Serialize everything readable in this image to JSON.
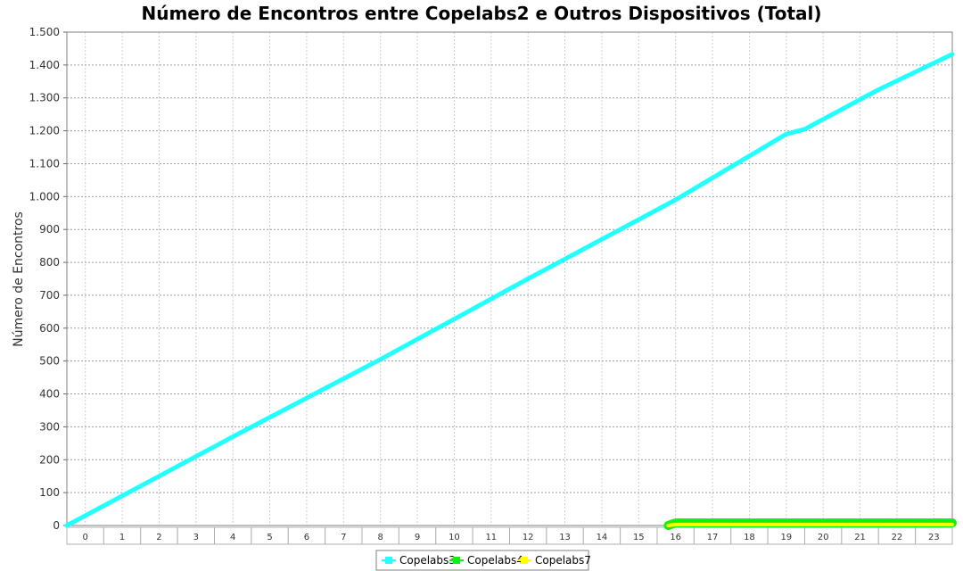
{
  "chart_data": {
    "type": "line",
    "title": "Número de Encontros entre Copelabs2 e Outros Dispositivos (Total)",
    "xlabel": "",
    "ylabel": "Número de Encontros",
    "categories": [
      "0",
      "1",
      "2",
      "3",
      "4",
      "5",
      "6",
      "7",
      "8",
      "9",
      "10",
      "11",
      "12",
      "13",
      "14",
      "15",
      "16",
      "17",
      "18",
      "19",
      "20",
      "21",
      "22",
      "23"
    ],
    "x_range": [
      0,
      24
    ],
    "ylim": [
      0,
      1500
    ],
    "y_ticks": [
      0,
      100,
      200,
      300,
      400,
      500,
      600,
      700,
      800,
      900,
      1000,
      1100,
      1200,
      1300,
      1400,
      1500
    ],
    "y_tick_labels": [
      "0",
      "100",
      "200",
      "300",
      "400",
      "500",
      "600",
      "700",
      "800",
      "900",
      "1.000",
      "1.100",
      "1.200",
      "1.300",
      "1.400",
      "1.500"
    ],
    "grid": true,
    "legend_position": "bottom",
    "series": [
      {
        "name": "Copelabs3",
        "color": "#22ffff",
        "points": [
          [
            0,
            0
          ],
          [
            1.5,
            90
          ],
          [
            4.5,
            270
          ],
          [
            8.5,
            505
          ],
          [
            12.5,
            750
          ],
          [
            16.5,
            990
          ],
          [
            19.5,
            1190
          ],
          [
            20,
            1205
          ],
          [
            22,
            1325
          ],
          [
            24,
            1433
          ]
        ]
      },
      {
        "name": "Copelabs4",
        "color": "#11ee11",
        "points": [
          [
            16.3,
            0
          ],
          [
            16.5,
            8
          ],
          [
            24,
            8
          ]
        ]
      },
      {
        "name": "Copelabs7",
        "color": "#ffff00",
        "points": [
          [
            16.3,
            0
          ],
          [
            16.5,
            3
          ],
          [
            24,
            3
          ]
        ]
      }
    ]
  }
}
